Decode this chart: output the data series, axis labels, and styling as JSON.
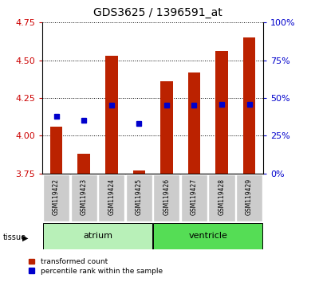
{
  "title": "GDS3625 / 1396591_at",
  "samples": [
    "GSM119422",
    "GSM119423",
    "GSM119424",
    "GSM119425",
    "GSM119426",
    "GSM119427",
    "GSM119428",
    "GSM119429"
  ],
  "red_bottom": [
    3.75,
    3.75,
    3.75,
    3.75,
    3.75,
    3.75,
    3.75,
    3.75
  ],
  "red_top": [
    4.06,
    3.88,
    4.53,
    3.77,
    4.36,
    4.42,
    4.56,
    4.65
  ],
  "blue_vals": [
    4.13,
    4.1,
    4.2,
    4.08,
    4.2,
    4.2,
    4.21,
    4.21
  ],
  "ylim_left": [
    3.75,
    4.75
  ],
  "ylim_right": [
    0,
    100
  ],
  "yticks_left": [
    3.75,
    4.0,
    4.25,
    4.5,
    4.75
  ],
  "yticks_right": [
    0,
    25,
    50,
    75,
    100
  ],
  "tissue_groups": [
    {
      "label": "atrium",
      "start": 0,
      "end": 3,
      "color": "#b8f0b8"
    },
    {
      "label": "ventricle",
      "start": 4,
      "end": 7,
      "color": "#55dd55"
    }
  ],
  "red_color": "#bb2200",
  "blue_color": "#0000cc",
  "bar_width": 0.45,
  "left_tick_color": "#cc0000",
  "right_tick_color": "#0000cc",
  "xlabel_bg": "#cccccc",
  "tissue_label": "tissue",
  "legend_entries": [
    "transformed count",
    "percentile rank within the sample"
  ]
}
